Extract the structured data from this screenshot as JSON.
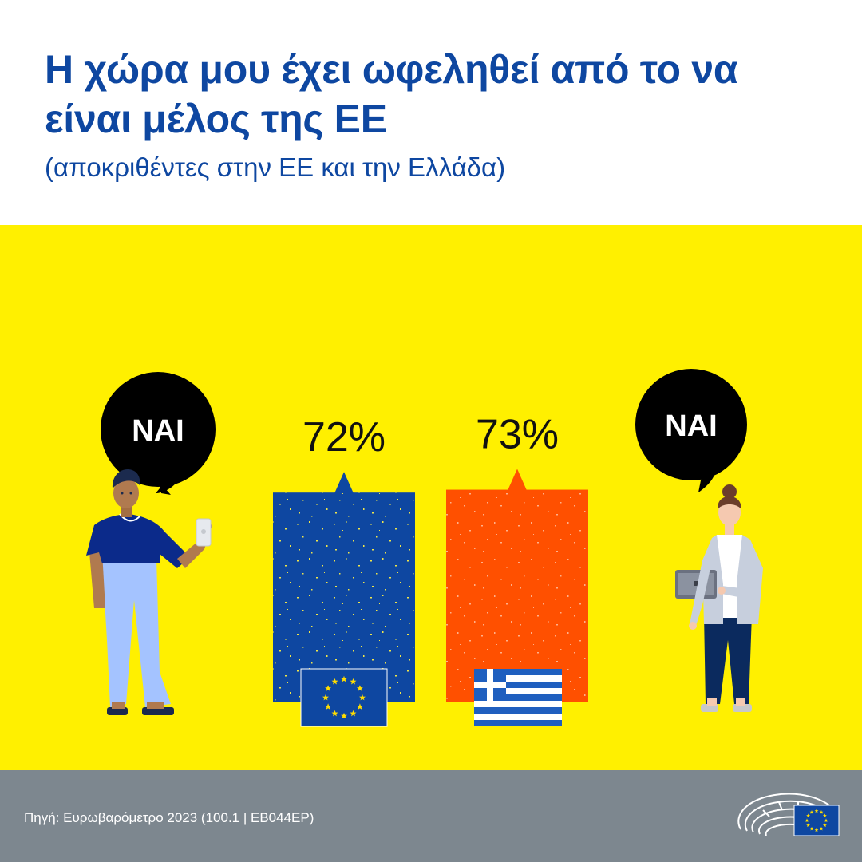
{
  "header": {
    "title_line1": "Η χώρα μου έχει ωφεληθεί από το να",
    "title_line2": "είναι μέλος της ΕΕ",
    "subtitle": "(αποκριθέντες στην ΕΕ και την Ελλάδα)"
  },
  "speech_bubbles": {
    "left": "ΝΑΙ",
    "right": "ΝΑΙ"
  },
  "chart_data": {
    "type": "bar",
    "categories": [
      "EU",
      "Greece"
    ],
    "values": [
      72,
      73
    ],
    "value_labels": [
      "72%",
      "73%"
    ],
    "colors": [
      "#0e47a1",
      "#ff5000"
    ],
    "title": "Η χώρα μου έχει ωφεληθεί από το να είναι μέλος της ΕΕ",
    "subtitle": "(αποκριθέντες στην ΕΕ και την Ελλάδα)",
    "xlabel": "",
    "ylabel": "",
    "ylim": [
      0,
      100
    ],
    "grid": false,
    "legend": "none"
  },
  "colors": {
    "title": "#0e47a1",
    "background": "#fff000",
    "footer": "#7d878f",
    "eu_blue": "#0e47a1",
    "greece_orange": "#ff5000",
    "eu_stars": "#ffdd00"
  },
  "icons": {
    "flag_left": "eu-flag-icon",
    "flag_right": "greece-flag-icon",
    "person_left": "man-with-phone-illustration",
    "person_right": "woman-with-laptop-illustration",
    "logo": "european-parliament-logo-icon"
  },
  "footer": {
    "source": "Πηγή: Ευρωβαρόμετρο 2023 (100.1 | EB044EP)"
  }
}
